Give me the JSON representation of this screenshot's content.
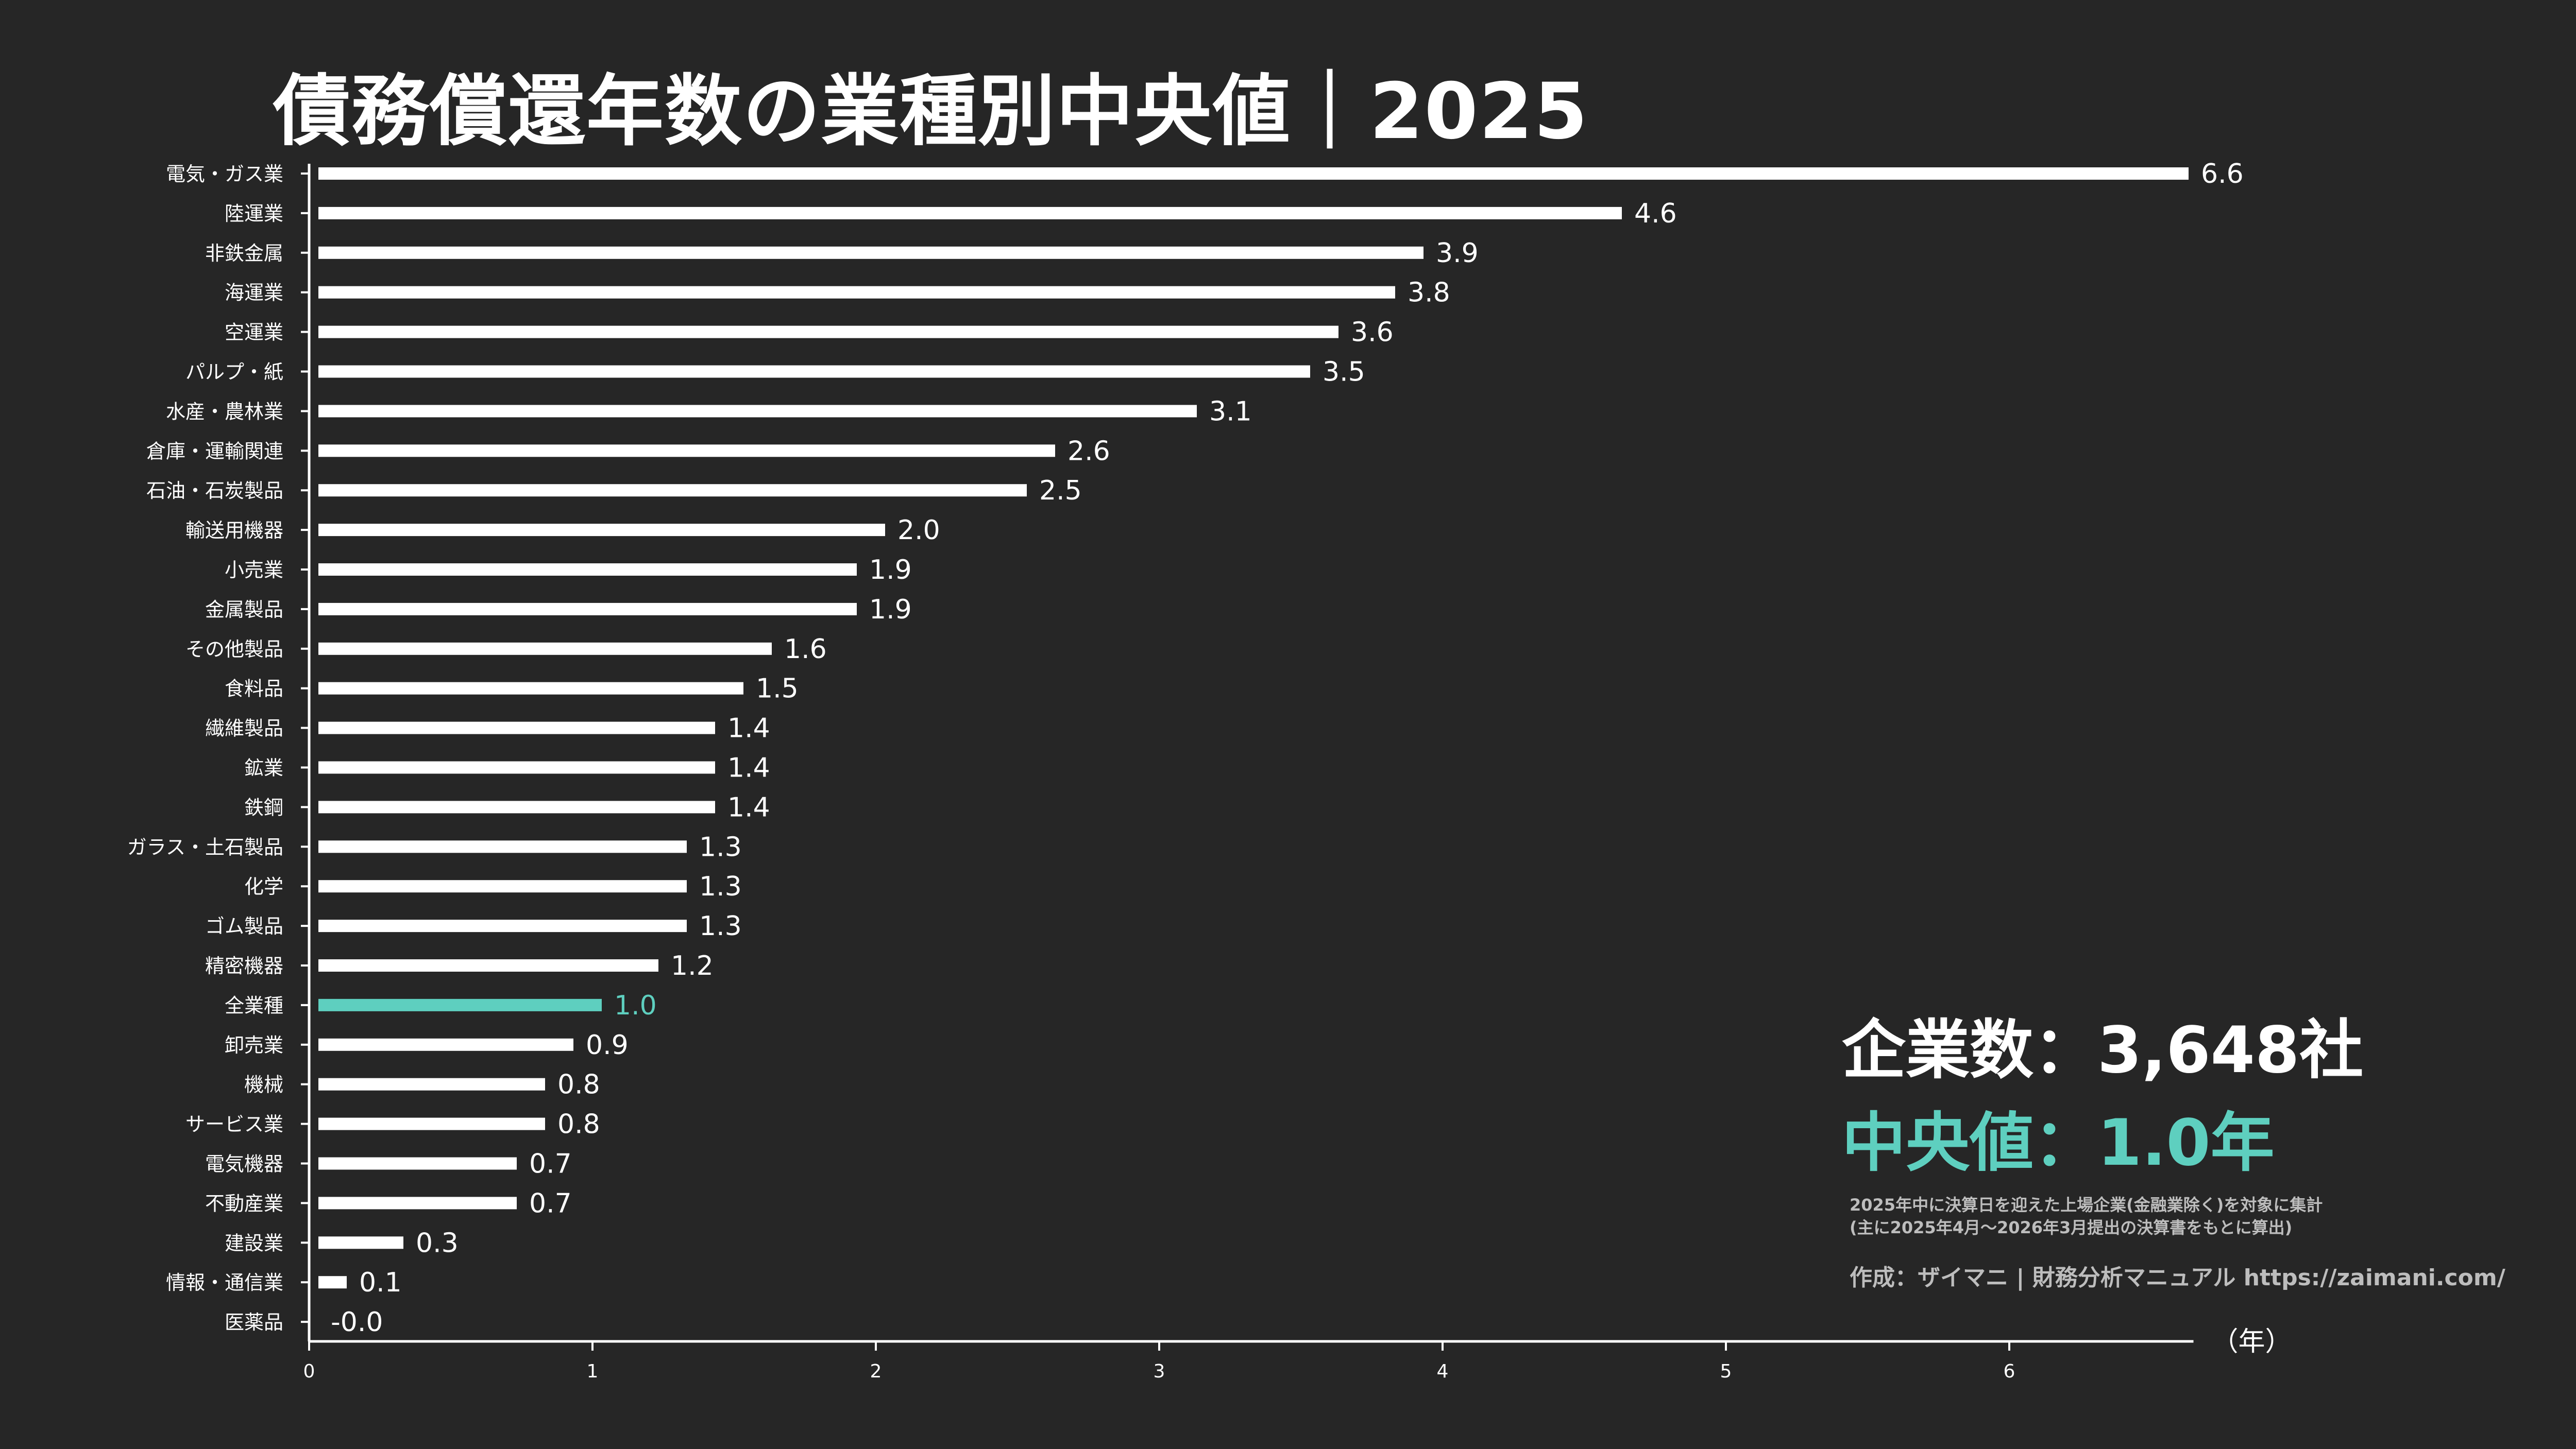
{
  "title": "債務償還年数の業種別中央値｜2025",
  "stats": {
    "count_label": "企業数：3,648社",
    "median_label": "中央値：1.0年"
  },
  "note": {
    "line1": "2025年中に決算日を迎えた上場企業(金融業除く)を対象に集計",
    "line2": "(主に2025年4月〜2026年3月提出の決算書をもとに算出)"
  },
  "credit": "作成：ザイマニ | 財務分析マニュアル https://zaimani.com/",
  "colors": {
    "background": "#262626",
    "bar": "#ffffff",
    "highlight": "#5ecfbf",
    "note_text": "#bdbdbd"
  },
  "chart_data": {
    "type": "bar",
    "orientation": "horizontal",
    "xlabel": "（年）",
    "xlim": [
      0,
      6.65
    ],
    "xticks": [
      "0",
      "1",
      "2",
      "3",
      "4",
      "5",
      "6"
    ],
    "highlight_category": "全業種",
    "categories": [
      "電気・ガス業",
      "陸運業",
      "非鉄金属",
      "海運業",
      "空運業",
      "パルプ・紙",
      "水産・農林業",
      "倉庫・運輸関連",
      "石油・石炭製品",
      "輸送用機器",
      "小売業",
      "金属製品",
      "その他製品",
      "食料品",
      "繊維製品",
      "鉱業",
      "鉄鋼",
      "ガラス・土石製品",
      "化学",
      "ゴム製品",
      "精密機器",
      "全業種",
      "卸売業",
      "機械",
      "サービス業",
      "電気機器",
      "不動産業",
      "建設業",
      "情報・通信業",
      "医薬品"
    ],
    "values": [
      6.6,
      4.6,
      3.9,
      3.8,
      3.6,
      3.5,
      3.1,
      2.6,
      2.5,
      2.0,
      1.9,
      1.9,
      1.6,
      1.5,
      1.4,
      1.4,
      1.4,
      1.3,
      1.3,
      1.3,
      1.2,
      1.0,
      0.9,
      0.8,
      0.8,
      0.7,
      0.7,
      0.3,
      0.1,
      0.0
    ],
    "value_labels": [
      "6.6",
      "4.6",
      "3.9",
      "3.8",
      "3.6",
      "3.5",
      "3.1",
      "2.6",
      "2.5",
      "2.0",
      "1.9",
      "1.9",
      "1.6",
      "1.5",
      "1.4",
      "1.4",
      "1.4",
      "1.3",
      "1.3",
      "1.3",
      "1.2",
      "1.0",
      "0.9",
      "0.8",
      "0.8",
      "0.7",
      "0.7",
      "0.3",
      "0.1",
      "-0.0"
    ],
    "grid": false,
    "legend": "none"
  }
}
